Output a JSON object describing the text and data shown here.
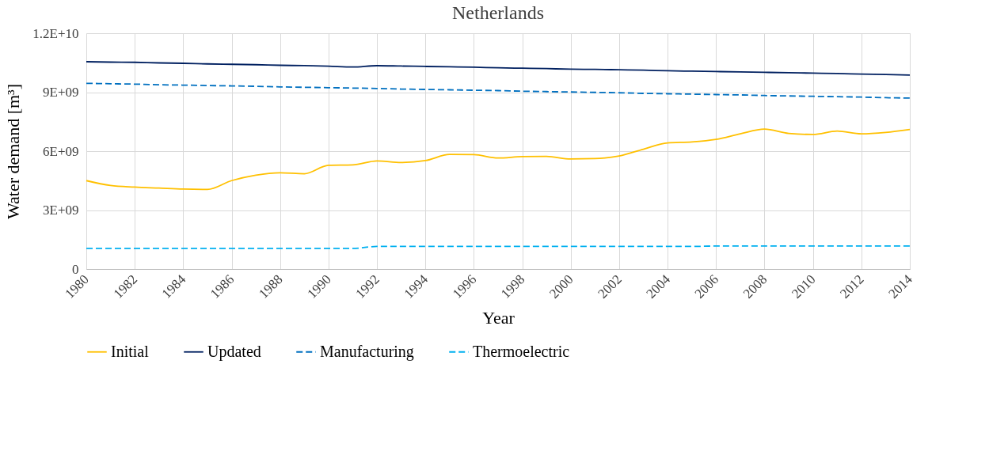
{
  "chart_data": {
    "type": "line",
    "title": "Netherlands",
    "xlabel": "Year",
    "ylabel": "Water demand [m³]",
    "x": [
      1980,
      1981,
      1982,
      1983,
      1984,
      1985,
      1986,
      1987,
      1988,
      1989,
      1990,
      1991,
      1992,
      1993,
      1994,
      1995,
      1996,
      1997,
      1998,
      1999,
      2000,
      2001,
      2002,
      2003,
      2004,
      2005,
      2006,
      2007,
      2008,
      2009,
      2010,
      2011,
      2012,
      2013,
      2014
    ],
    "xlim": [
      1980,
      2014
    ],
    "xticks": [
      1980,
      1982,
      1984,
      1986,
      1988,
      1990,
      1992,
      1994,
      1996,
      1998,
      2000,
      2002,
      2004,
      2006,
      2008,
      2010,
      2012,
      2014
    ],
    "ylim": [
      0,
      12000000000
    ],
    "yticks": [
      0,
      {
        "value": 3000000000,
        "label": "3E+09"
      },
      {
        "value": 6000000000,
        "label": "6E+09"
      },
      {
        "value": 9000000000,
        "label": "9E+09"
      },
      {
        "value": 12000000000,
        "label": "1.2E+10"
      }
    ],
    "grid": true,
    "legend": "bottom",
    "marker": "none",
    "series": [
      {
        "name": "Initial",
        "color": "#ffc000",
        "line_style": "solid",
        "values": [
          4500000000.0,
          4250000000.0,
          4170000000.0,
          4120000000.0,
          4070000000.0,
          4050000000.0,
          4500000000.0,
          4780000000.0,
          4900000000.0,
          4850000000.0,
          5280000000.0,
          5300000000.0,
          5500000000.0,
          5420000000.0,
          5520000000.0,
          5830000000.0,
          5820000000.0,
          5650000000.0,
          5720000000.0,
          5730000000.0,
          5600000000.0,
          5620000000.0,
          5750000000.0,
          6100000000.0,
          6420000000.0,
          6470000000.0,
          6600000000.0,
          6880000000.0,
          7120000000.0,
          6900000000.0,
          6850000000.0,
          7020000000.0,
          6880000000.0,
          6950000000.0,
          7100000000.0
        ]
      },
      {
        "name": "Updated",
        "color": "#002060",
        "line_style": "solid",
        "values": [
          10550000000.0,
          10530000000.0,
          10520000000.0,
          10490000000.0,
          10470000000.0,
          10440000000.0,
          10420000000.0,
          10400000000.0,
          10370000000.0,
          10350000000.0,
          10320000000.0,
          10280000000.0,
          10350000000.0,
          10330000000.0,
          10310000000.0,
          10290000000.0,
          10270000000.0,
          10240000000.0,
          10220000000.0,
          10200000000.0,
          10170000000.0,
          10160000000.0,
          10140000000.0,
          10120000000.0,
          10090000000.0,
          10070000000.0,
          10050000000.0,
          10030000000.0,
          10010000000.0,
          9990000000.0,
          9970000000.0,
          9950000000.0,
          9920000000.0,
          9900000000.0,
          9870000000.0
        ]
      },
      {
        "name": "Manufacturing",
        "color": "#0070c0",
        "line_style": "dashed",
        "values": [
          9450000000.0,
          9430000000.0,
          9410000000.0,
          9380000000.0,
          9360000000.0,
          9340000000.0,
          9320000000.0,
          9300000000.0,
          9270000000.0,
          9250000000.0,
          9230000000.0,
          9210000000.0,
          9190000000.0,
          9160000000.0,
          9140000000.0,
          9120000000.0,
          9100000000.0,
          9080000000.0,
          9050000000.0,
          9030000000.0,
          9010000000.0,
          8990000000.0,
          8970000000.0,
          8940000000.0,
          8920000000.0,
          8900000000.0,
          8880000000.0,
          8860000000.0,
          8830000000.0,
          8810000000.0,
          8790000000.0,
          8770000000.0,
          8750000000.0,
          8720000000.0,
          8700000000.0
        ]
      },
      {
        "name": "Thermoelectric",
        "color": "#00b0f0",
        "line_style": "dashed",
        "values": [
          1050000000.0,
          1050000000.0,
          1050000000.0,
          1050000000.0,
          1050000000.0,
          1050000000.0,
          1050000000.0,
          1050000000.0,
          1050000000.0,
          1050000000.0,
          1050000000.0,
          1050000000.0,
          1150000000.0,
          1150000000.0,
          1150000000.0,
          1150000000.0,
          1150000000.0,
          1150000000.0,
          1150000000.0,
          1150000000.0,
          1150000000.0,
          1150000000.0,
          1150000000.0,
          1150000000.0,
          1150000000.0,
          1150000000.0,
          1170000000.0,
          1170000000.0,
          1170000000.0,
          1170000000.0,
          1170000000.0,
          1170000000.0,
          1170000000.0,
          1170000000.0,
          1170000000.0
        ]
      }
    ]
  }
}
